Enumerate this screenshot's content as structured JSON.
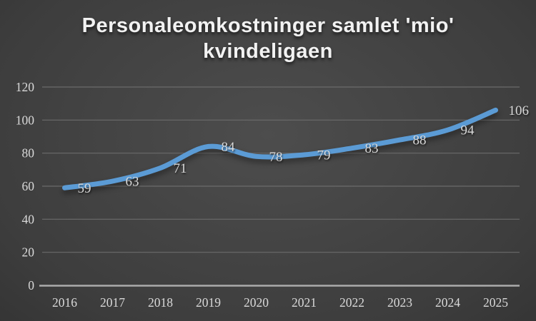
{
  "title": {
    "line1": "Personaleomkostninger samlet 'mio'",
    "line2": "kvindeligaen"
  },
  "chart_data": {
    "type": "line",
    "title": "Personaleomkostninger samlet 'mio' kvindeligaen",
    "categories": [
      "2016",
      "2017",
      "2018",
      "2019",
      "2020",
      "2021",
      "2022",
      "2023",
      "2024",
      "2025"
    ],
    "values": [
      59,
      63,
      71,
      84,
      78,
      79,
      83,
      88,
      94,
      106
    ],
    "xlabel": "",
    "ylabel": "",
    "ylim": [
      0,
      120
    ],
    "yticks": [
      0,
      20,
      40,
      60,
      80,
      100,
      120
    ],
    "grid": true,
    "legend": false,
    "smoothed_line": true,
    "data_labels_shown": true,
    "colors": {
      "line": "#5B9BD5",
      "label_text": "#D9D9D9",
      "gridline": "#6B6B6B",
      "axis_line": "#ACACAC",
      "title_text": "#F2F2F2",
      "background_center": "#4D4D4D",
      "background_edge": "#1E1E1E"
    }
  }
}
